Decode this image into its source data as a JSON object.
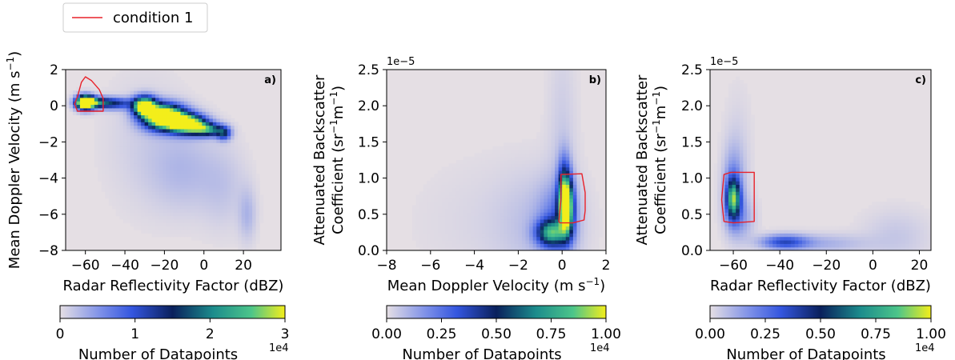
{
  "legend": {
    "label": "condition 1",
    "color": "#e8222a"
  },
  "chart_data": [
    {
      "panel_label": "a)",
      "type": "heatmap",
      "xlabel": "Radar Reflectivity Factor (dBZ)",
      "ylabel": "Mean Doppler Velocity (m s⁻¹)",
      "xlim": [
        -70,
        39
      ],
      "ylim": [
        -8,
        2
      ],
      "xticks": [
        -60,
        -40,
        -20,
        0,
        20
      ],
      "xtick_labels": [
        "−60",
        "−40",
        "−20",
        "0",
        "20"
      ],
      "yticks": [
        -8,
        -6,
        -4,
        -2,
        0,
        2
      ],
      "ytick_labels": [
        "−8",
        "−6",
        "−4",
        "−2",
        "0",
        "2"
      ],
      "y_offset_label": "",
      "colorbar": {
        "label": "Number of Datapoints",
        "offset": "1e4",
        "range": [
          0,
          3
        ],
        "ticks": [
          0,
          1,
          2,
          3
        ],
        "tick_labels": [
          "0",
          "1",
          "2",
          "3"
        ]
      },
      "density_blobs": [
        {
          "x": -60,
          "y": 0.2,
          "sx": 3,
          "sy": 0.25,
          "w": 3.5
        },
        {
          "x": -55,
          "y": 0.2,
          "sx": 5,
          "sy": 0.2,
          "w": 1.2
        },
        {
          "x": -45,
          "y": 0.15,
          "sx": 6,
          "sy": 0.22,
          "w": 0.9
        },
        {
          "x": -30,
          "y": 0.0,
          "sx": 4,
          "sy": 0.35,
          "w": 2.6
        },
        {
          "x": -20,
          "y": -0.6,
          "sx": 7,
          "sy": 0.45,
          "w": 3.2
        },
        {
          "x": -8,
          "y": -1.0,
          "sx": 6,
          "sy": 0.35,
          "w": 2.6
        },
        {
          "x": 2,
          "y": -1.3,
          "sx": 5,
          "sy": 0.25,
          "w": 1.4
        },
        {
          "x": 10,
          "y": -1.5,
          "sx": 2.5,
          "sy": 0.25,
          "w": 1.0
        },
        {
          "x": -10,
          "y": -3.5,
          "sx": 12,
          "sy": 1.6,
          "w": 0.18
        },
        {
          "x": 10,
          "y": -4.5,
          "sx": 8,
          "sy": 1.6,
          "w": 0.12
        },
        {
          "x": 22,
          "y": -6.0,
          "sx": 3,
          "sy": 1.0,
          "w": 0.2
        },
        {
          "x": -30,
          "y": -2.0,
          "sx": 14,
          "sy": 2.5,
          "w": 0.08
        }
      ],
      "condition_contour": [
        [
          -64,
          0.5
        ],
        [
          -62,
          1.3
        ],
        [
          -60,
          1.6
        ],
        [
          -57,
          1.4
        ],
        [
          -53,
          0.9
        ],
        [
          -51,
          0.4
        ],
        [
          -51,
          -0.3
        ],
        [
          -64,
          -0.3
        ],
        [
          -65.5,
          0.1
        ]
      ]
    },
    {
      "panel_label": "b)",
      "type": "heatmap",
      "xlabel": "Mean Doppler Velocity (m s⁻¹)",
      "ylabel": "Attenuated Backscatter Coefficient (sr⁻¹m⁻¹)",
      "xlim": [
        -8,
        2
      ],
      "ylim": [
        0,
        2.5
      ],
      "xticks": [
        -8,
        -6,
        -4,
        -2,
        0,
        2
      ],
      "xtick_labels": [
        "−8",
        "−6",
        "−4",
        "−2",
        "0",
        "2"
      ],
      "yticks": [
        0,
        0.5,
        1,
        1.5,
        2,
        2.5
      ],
      "ytick_labels": [
        "0.0",
        "0.5",
        "1.0",
        "1.5",
        "2.0",
        "2.5"
      ],
      "y_offset_label": "1e−5",
      "colorbar": {
        "label": "Number of Datapoints",
        "offset": "1e4",
        "range": [
          0,
          1
        ],
        "ticks": [
          0,
          0.25,
          0.5,
          0.75,
          1
        ],
        "tick_labels": [
          "0.00",
          "0.25",
          "0.50",
          "0.75",
          "1.00"
        ]
      },
      "density_blobs": [
        {
          "x": 0.2,
          "y": 0.6,
          "sx": 0.22,
          "sy": 0.25,
          "w": 2.2
        },
        {
          "x": 0.1,
          "y": 0.85,
          "sx": 0.2,
          "sy": 0.3,
          "w": 1.0
        },
        {
          "x": -0.5,
          "y": 0.25,
          "sx": 0.45,
          "sy": 0.12,
          "w": 1.4
        },
        {
          "x": -0.2,
          "y": 0.4,
          "sx": 0.6,
          "sy": 0.35,
          "w": 0.45
        },
        {
          "x": -1.2,
          "y": 0.35,
          "sx": 1.2,
          "sy": 0.5,
          "w": 0.12
        },
        {
          "x": 0.0,
          "y": 1.5,
          "sx": 0.45,
          "sy": 1.0,
          "w": 0.1
        },
        {
          "x": -3.0,
          "y": 0.4,
          "sx": 2.5,
          "sy": 0.6,
          "w": 0.05
        }
      ],
      "condition_contour": [
        [
          -0.15,
          0.4
        ],
        [
          -0.05,
          0.7
        ],
        [
          -0.05,
          1.05
        ],
        [
          0.9,
          1.06
        ],
        [
          1.05,
          0.8
        ],
        [
          1.05,
          0.55
        ],
        [
          1.0,
          0.42
        ],
        [
          0.5,
          0.38
        ],
        [
          -0.1,
          0.38
        ]
      ]
    },
    {
      "panel_label": "c)",
      "type": "heatmap",
      "xlabel": "Radar Reflectivity Factor (dBZ)",
      "ylabel": "Attenuated Backscatter Coefficient (sr⁻¹m⁻¹)",
      "xlim": [
        -70,
        25
      ],
      "ylim": [
        0,
        2.5
      ],
      "xticks": [
        -60,
        -40,
        -20,
        0,
        20
      ],
      "xtick_labels": [
        "−60",
        "−40",
        "−20",
        "0",
        "20"
      ],
      "yticks": [
        0,
        0.5,
        1,
        1.5,
        2,
        2.5
      ],
      "ytick_labels": [
        "0.0",
        "0.5",
        "1.0",
        "1.5",
        "2.0",
        "2.5"
      ],
      "y_offset_label": "1e−5",
      "colorbar": {
        "label": "Number of Datapoints",
        "offset": "1e4",
        "range": [
          0,
          1
        ],
        "ticks": [
          0,
          0.25,
          0.5,
          0.75,
          1
        ],
        "tick_labels": [
          "0.00",
          "0.25",
          "0.50",
          "0.75",
          "1.00"
        ]
      },
      "density_blobs": [
        {
          "x": -60,
          "y": 0.72,
          "sx": 2,
          "sy": 0.18,
          "w": 1.6
        },
        {
          "x": -60,
          "y": 0.9,
          "sx": 3,
          "sy": 0.35,
          "w": 0.4
        },
        {
          "x": -57,
          "y": 0.45,
          "sx": 4,
          "sy": 0.2,
          "w": 0.3
        },
        {
          "x": -38,
          "y": 0.12,
          "sx": 7,
          "sy": 0.07,
          "w": 0.75
        },
        {
          "x": -20,
          "y": 0.1,
          "sx": 12,
          "sy": 0.09,
          "w": 0.22
        },
        {
          "x": 10,
          "y": 0.2,
          "sx": 10,
          "sy": 0.25,
          "w": 0.12
        },
        {
          "x": -58,
          "y": 1.3,
          "sx": 4,
          "sy": 0.6,
          "w": 0.08
        }
      ],
      "condition_contour": [
        [
          -64,
          0.4
        ],
        [
          -65,
          0.7
        ],
        [
          -64,
          1.05
        ],
        [
          -61,
          1.08
        ],
        [
          -51,
          1.08
        ],
        [
          -51,
          0.4
        ],
        [
          -60,
          0.38
        ]
      ]
    }
  ]
}
